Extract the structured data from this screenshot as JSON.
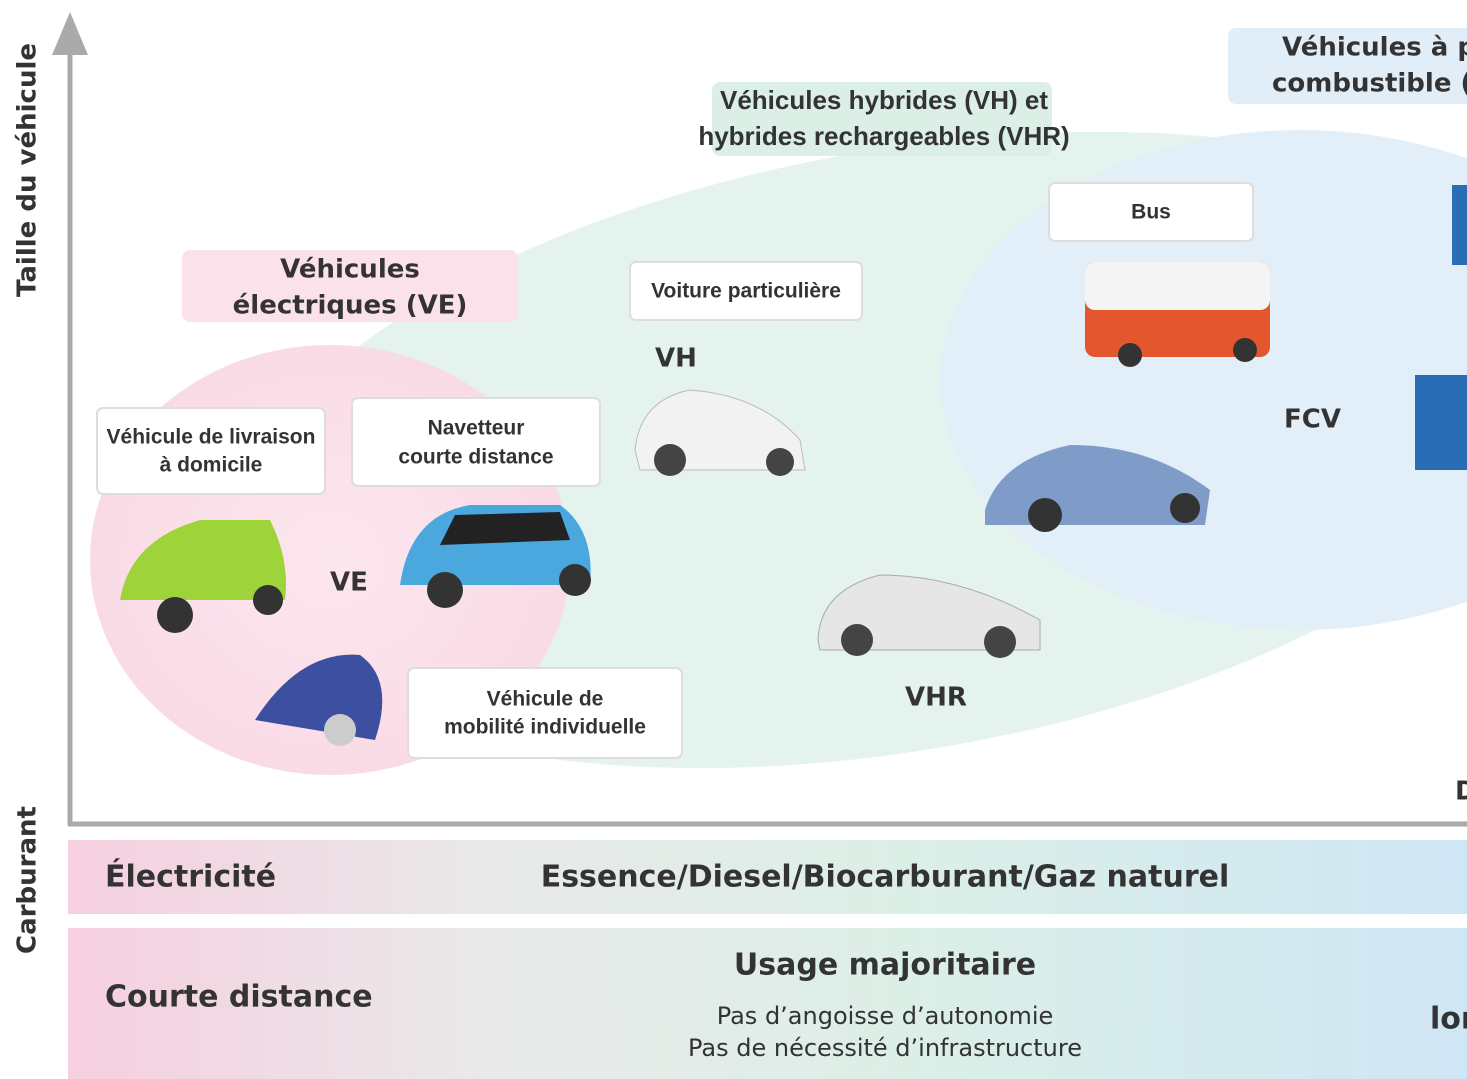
{
  "axes": {
    "size_label": "Taille du véhicule",
    "fuel_label": "Carburant"
  },
  "groups": {
    "ev": [
      "Véhicules",
      "électriques (VE)"
    ],
    "hybrid": [
      "Véhicules hybrides (VH) et",
      "hybrides rechargeables (VHR)"
    ],
    "fcv": [
      "Véhicules à pi",
      "combustible (F"
    ]
  },
  "boxes": {
    "delivery": [
      "Véhicule de livraison",
      "à domicile"
    ],
    "commuter": [
      "Navetteur",
      "courte distance"
    ],
    "mobility": [
      "Véhicule de",
      "mobilité individuelle"
    ],
    "car": "Voiture particulière",
    "bus": "Bus"
  },
  "labels": {
    "ve": "VE",
    "vh": "VH",
    "vhr": "VHR",
    "fcv": "FCV",
    "d": "D"
  },
  "fuel": {
    "electric": "Électricité",
    "fossil": "Essence/Diesel/Biocarburant/Gaz naturel"
  },
  "usage": {
    "short": "Courte distance",
    "main": "Usage majoritaire",
    "note1": "Pas d’angoisse d’autonomie",
    "note2": "Pas de nécessité d’infrastructure",
    "long": "lor"
  }
}
